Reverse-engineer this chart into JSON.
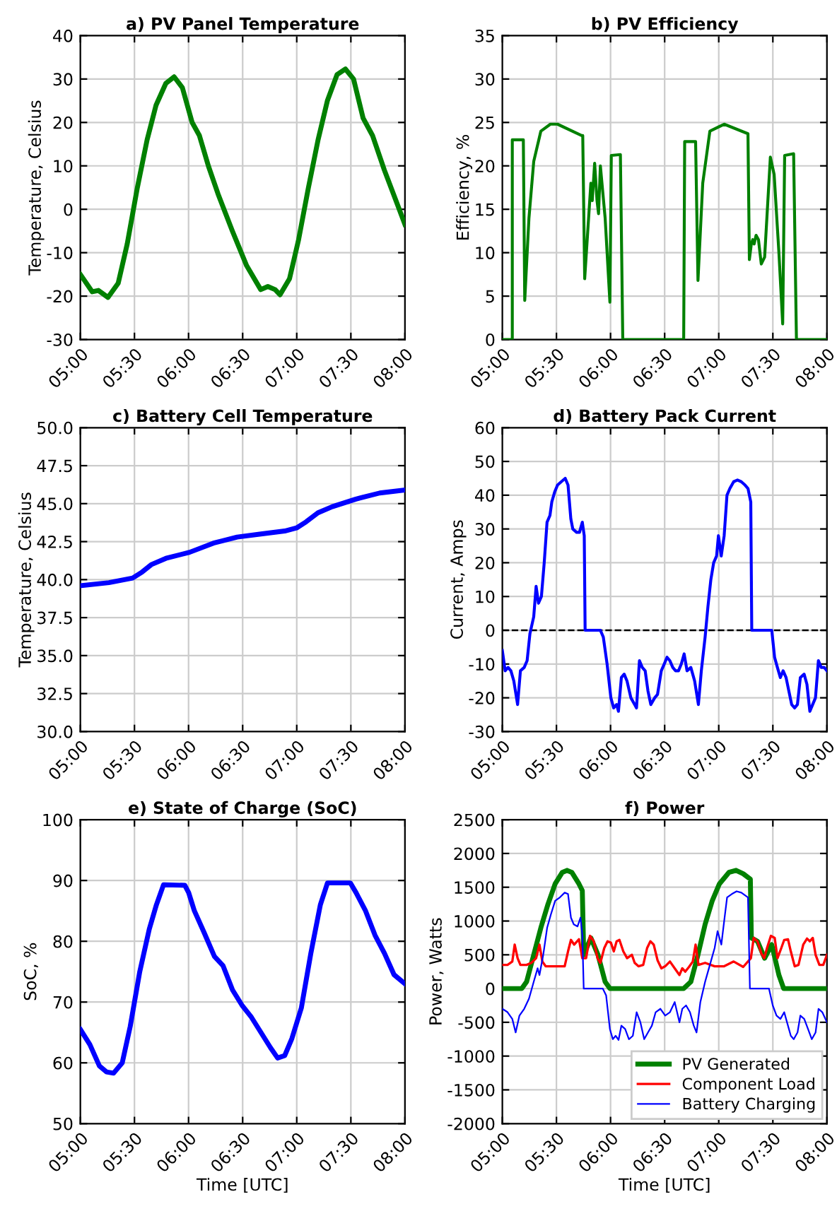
{
  "chart_data": [
    {
      "type": "line",
      "title": "a) PV Panel Temperature",
      "ylabel": "Temperature, Celsius",
      "xlim": [
        5,
        8
      ],
      "ylim": [
        -30,
        40
      ],
      "yticks": [
        -30,
        -20,
        -10,
        0,
        10,
        20,
        30,
        40
      ],
      "xticks": [
        {
          "value": 5,
          "label": "05:00"
        },
        {
          "value": 5.5,
          "label": "05:30"
        },
        {
          "value": 6,
          "label": "06:00"
        },
        {
          "value": 6.5,
          "label": "06:30"
        },
        {
          "value": 7,
          "label": "07:00"
        },
        {
          "value": 7.5,
          "label": "07:30"
        },
        {
          "value": 8,
          "label": "08:00"
        }
      ],
      "grid": true,
      "series": [
        {
          "color": "#008000",
          "x": [
            5.0,
            5.11,
            5.167,
            5.255,
            5.35,
            5.433,
            5.527,
            5.617,
            5.7,
            5.79,
            5.867,
            5.943,
            6.033,
            6.1,
            6.183,
            6.273,
            6.405,
            6.537,
            6.667,
            6.733,
            6.8,
            6.845,
            6.933,
            7.017,
            7.108,
            7.197,
            7.283,
            7.372,
            7.45,
            7.525,
            7.613,
            7.7,
            7.81,
            7.917,
            8.0
          ],
          "values": [
            -15,
            -19,
            -18.7,
            -20.3,
            -17,
            -8,
            5,
            16,
            24,
            29,
            30.5,
            28,
            20,
            17,
            10,
            3.5,
            -5,
            -13,
            -18.5,
            -17.8,
            -18.5,
            -19.7,
            -16,
            -7,
            5,
            16,
            25,
            31,
            32.3,
            30,
            21,
            17,
            9,
            2,
            -3.5
          ]
        }
      ]
    },
    {
      "type": "line",
      "title": "b) PV Efficiency",
      "ylabel": "Efficiency, %",
      "xlim": [
        5,
        8
      ],
      "ylim": [
        0,
        35
      ],
      "yticks": [
        0,
        5,
        10,
        15,
        20,
        25,
        30,
        35
      ],
      "xticks": [
        {
          "value": 5,
          "label": "05:00"
        },
        {
          "value": 5.5,
          "label": "05:30"
        },
        {
          "value": 6,
          "label": "06:00"
        },
        {
          "value": 6.5,
          "label": "06:30"
        },
        {
          "value": 7,
          "label": "07:00"
        },
        {
          "value": 7.5,
          "label": "07:30"
        },
        {
          "value": 8,
          "label": "08:00"
        }
      ],
      "grid": true,
      "series": [
        {
          "color": "#008000",
          "x": [
            5.0,
            5.092,
            5.092,
            5.194,
            5.207,
            5.246,
            5.29,
            5.356,
            5.444,
            5.51,
            5.73,
            5.743,
            5.761,
            5.818,
            5.831,
            5.853,
            5.875,
            5.889,
            5.906,
            5.95,
            5.994,
            6.007,
            6.091,
            6.113,
            6.676,
            6.685,
            6.786,
            6.808,
            6.852,
            6.918,
            7.05,
            7.27,
            7.283,
            7.301,
            7.314,
            7.327,
            7.345,
            7.367,
            7.393,
            7.424,
            7.477,
            7.512,
            7.556,
            7.591,
            7.609,
            7.692,
            7.718,
            8.0
          ],
          "values": [
            0,
            0,
            23,
            23,
            4.5,
            14,
            20.5,
            24,
            24.8,
            24.8,
            23.5,
            23.5,
            7,
            18,
            16,
            20.3,
            16,
            14.5,
            20,
            14,
            4.3,
            21.2,
            21.3,
            0,
            0,
            22.8,
            22.8,
            6.8,
            18,
            24,
            24.8,
            23.7,
            9.2,
            11,
            11.5,
            11,
            12,
            11.5,
            8.7,
            9.5,
            21,
            19,
            10,
            1.8,
            21.2,
            21.4,
            0,
            0
          ]
        }
      ]
    },
    {
      "type": "line",
      "title": "c) Battery Cell Temperature",
      "ylabel": "Temperature, Celsius",
      "xlim": [
        5,
        8
      ],
      "ylim": [
        30,
        50
      ],
      "yticks": [
        {
          "value": 30,
          "label": "30.0"
        },
        {
          "value": 32.5,
          "label": "32.5"
        },
        {
          "value": 35,
          "label": "35.0"
        },
        {
          "value": 37.5,
          "label": "37.5"
        },
        {
          "value": 40,
          "label": "40.0"
        },
        {
          "value": 42.5,
          "label": "42.5"
        },
        {
          "value": 45,
          "label": "45.0"
        },
        {
          "value": 47.5,
          "label": "47.5"
        },
        {
          "value": 50,
          "label": "50.0"
        }
      ],
      "xticks": [
        {
          "value": 5,
          "label": "05:00"
        },
        {
          "value": 5.5,
          "label": "05:30"
        },
        {
          "value": 6,
          "label": "06:00"
        },
        {
          "value": 6.5,
          "label": "06:30"
        },
        {
          "value": 7,
          "label": "07:00"
        },
        {
          "value": 7.5,
          "label": "07:30"
        },
        {
          "value": 8,
          "label": "08:00"
        }
      ],
      "grid": true,
      "series": [
        {
          "color": "#0000ff",
          "x": [
            5.0,
            5.264,
            5.483,
            5.571,
            5.659,
            5.791,
            6.01,
            6.23,
            6.449,
            6.669,
            6.889,
            6.998,
            7.086,
            7.196,
            7.328,
            7.547,
            7.767,
            8.0
          ],
          "values": [
            39.6,
            39.8,
            40.1,
            40.5,
            41.0,
            41.4,
            41.8,
            42.4,
            42.8,
            43.0,
            43.2,
            43.4,
            43.8,
            44.4,
            44.8,
            45.3,
            45.7,
            45.9
          ]
        }
      ]
    },
    {
      "type": "line",
      "title": "d) Battery Pack Current",
      "ylabel": "Current, Amps",
      "xlim": [
        5,
        8
      ],
      "ylim": [
        -30,
        60
      ],
      "yticks": [
        -30,
        -20,
        -10,
        0,
        10,
        20,
        30,
        40,
        50,
        60
      ],
      "xticks": [
        {
          "value": 5,
          "label": "05:00"
        },
        {
          "value": 5.5,
          "label": "05:30"
        },
        {
          "value": 6,
          "label": "06:00"
        },
        {
          "value": 6.5,
          "label": "06:30"
        },
        {
          "value": 7,
          "label": "07:00"
        },
        {
          "value": 7.5,
          "label": "07:30"
        },
        {
          "value": 8,
          "label": "08:00"
        }
      ],
      "grid": true,
      "ref_lines": [
        {
          "axis": "y",
          "value": 0,
          "color": "#000000",
          "line_style": "dashed"
        }
      ],
      "series": [
        {
          "color": "#0000ff",
          "x": [
            5.0,
            5.026,
            5.053,
            5.079,
            5.106,
            5.141,
            5.167,
            5.202,
            5.229,
            5.255,
            5.29,
            5.312,
            5.334,
            5.361,
            5.387,
            5.413,
            5.44,
            5.457,
            5.484,
            5.51,
            5.545,
            5.581,
            5.607,
            5.633,
            5.651,
            5.686,
            5.713,
            5.739,
            5.757,
            5.765,
            5.906,
            5.933,
            5.968,
            6.003,
            6.029,
            6.056,
            6.073,
            6.1,
            6.126,
            6.152,
            6.188,
            6.223,
            6.24,
            6.267,
            6.293,
            6.32,
            6.346,
            6.372,
            6.408,
            6.434,
            6.469,
            6.496,
            6.522,
            6.548,
            6.575,
            6.601,
            6.628,
            6.654,
            6.68,
            6.707,
            6.742,
            6.777,
            6.812,
            6.839,
            6.874,
            6.9,
            6.927,
            6.953,
            6.98,
            6.997,
            7.023,
            7.05,
            7.076,
            7.103,
            7.138,
            7.173,
            7.208,
            7.243,
            7.27,
            7.296,
            7.305,
            7.49,
            7.516,
            7.542,
            7.569,
            7.595,
            7.622,
            7.648,
            7.674,
            7.701,
            7.727,
            7.754,
            7.789,
            7.815,
            7.842,
            7.868,
            7.894,
            7.921,
            7.947,
            7.974,
            8.0
          ],
          "values": [
            -6,
            -12,
            -11,
            -12,
            -15,
            -22,
            -12,
            -11,
            -9,
            -1,
            4,
            13,
            8,
            10,
            20,
            32,
            34,
            38,
            41,
            43,
            44,
            45,
            43,
            33,
            30,
            29,
            29,
            32,
            28,
            0,
            0,
            -2,
            -10,
            -20,
            -23,
            -22,
            -24,
            -14,
            -13,
            -15,
            -20,
            -22,
            -23,
            -9,
            -11,
            -12,
            -18,
            -22,
            -20,
            -19,
            -12,
            -10,
            -8,
            -9,
            -11,
            -12,
            -12,
            -10,
            -7,
            -12,
            -11,
            -15,
            -22,
            -12,
            -2,
            7,
            15,
            20,
            22,
            28,
            22,
            28,
            40,
            42,
            44,
            44.5,
            44,
            43,
            42,
            38,
            0,
            0,
            -8,
            -11,
            -14,
            -12,
            -14,
            -18,
            -22,
            -23,
            -22,
            -14,
            -13,
            -16,
            -24,
            -22,
            -20,
            -9,
            -11,
            -11,
            -12
          ]
        }
      ]
    },
    {
      "type": "line",
      "title": "e) State of Charge (SoC)",
      "xlabel": "Time [UTC]",
      "ylabel": "SoC, %",
      "xlim": [
        5,
        8
      ],
      "ylim": [
        50,
        100
      ],
      "yticks": [
        50,
        60,
        70,
        80,
        90,
        100
      ],
      "xticks": [
        {
          "value": 5,
          "label": "05:00"
        },
        {
          "value": 5.5,
          "label": "05:30"
        },
        {
          "value": 6,
          "label": "06:00"
        },
        {
          "value": 6.5,
          "label": "06:30"
        },
        {
          "value": 7,
          "label": "07:00"
        },
        {
          "value": 7.5,
          "label": "07:30"
        },
        {
          "value": 8,
          "label": "08:00"
        }
      ],
      "grid": true,
      "series": [
        {
          "color": "#0000ff",
          "x": [
            5.0,
            5.088,
            5.176,
            5.242,
            5.307,
            5.387,
            5.461,
            5.549,
            5.637,
            5.703,
            5.769,
            5.966,
            6.001,
            6.054,
            6.142,
            6.239,
            6.318,
            6.406,
            6.493,
            6.581,
            6.669,
            6.757,
            6.823,
            6.889,
            6.955,
            7.042,
            7.13,
            7.218,
            7.284,
            7.495,
            7.548,
            7.636,
            7.723,
            7.811,
            7.899,
            8.0
          ],
          "values": [
            65.5,
            63,
            59.5,
            58.5,
            58.3,
            60,
            66,
            75,
            82,
            86,
            89.3,
            89.2,
            88,
            85,
            81.5,
            77.5,
            76,
            72,
            69.5,
            67.5,
            65,
            62.5,
            60.8,
            61.2,
            64,
            69,
            78,
            86,
            89.6,
            89.6,
            88,
            85,
            81,
            78,
            74.5,
            73
          ]
        }
      ]
    },
    {
      "type": "line",
      "title": "f) Power",
      "xlabel": "Time [UTC]",
      "ylabel": "Power, Watts",
      "xlim": [
        5,
        8
      ],
      "ylim": [
        -2000,
        2500
      ],
      "yticks": [
        -2000,
        -1500,
        -1000,
        -500,
        0,
        500,
        1000,
        1500,
        2000,
        2500
      ],
      "xticks": [
        {
          "value": 5,
          "label": "05:00"
        },
        {
          "value": 5.5,
          "label": "05:30"
        },
        {
          "value": 6,
          "label": "06:00"
        },
        {
          "value": 6.5,
          "label": "06:30"
        },
        {
          "value": 7,
          "label": "07:00"
        },
        {
          "value": 7.5,
          "label": "07:30"
        },
        {
          "value": 8,
          "label": "08:00"
        }
      ],
      "grid": true,
      "legend": "bottom right",
      "series": [
        {
          "name": "PV Generated",
          "color": "#008000",
          "x": [
            5.0,
            5.18,
            5.224,
            5.29,
            5.356,
            5.422,
            5.488,
            5.554,
            5.598,
            5.642,
            5.708,
            5.739,
            5.752,
            5.818,
            5.884,
            5.95,
            5.994,
            6.676,
            6.742,
            6.808,
            6.874,
            6.94,
            7.006,
            7.094,
            7.16,
            7.226,
            7.292,
            7.301,
            7.358,
            7.424,
            7.49,
            7.556,
            7.6,
            8.0
          ],
          "values": [
            0,
            0,
            100,
            500,
            900,
            1250,
            1550,
            1720,
            1750,
            1720,
            1550,
            1450,
            500,
            750,
            500,
            100,
            0,
            0,
            100,
            500,
            950,
            1300,
            1550,
            1720,
            1750,
            1700,
            1620,
            750,
            700,
            450,
            650,
            200,
            0,
            0
          ]
        },
        {
          "name": "Component Load",
          "color": "#ff0000",
          "x": [
            5.0,
            5.048,
            5.092,
            5.114,
            5.141,
            5.167,
            5.224,
            5.268,
            5.312,
            5.343,
            5.37,
            5.4,
            5.51,
            5.576,
            5.607,
            5.634,
            5.664,
            5.708,
            5.739,
            5.774,
            5.81,
            5.845,
            5.88,
            5.906,
            5.942,
            5.972,
            6.003,
            6.03,
            6.056,
            6.082,
            6.118,
            6.153,
            6.197,
            6.223,
            6.258,
            6.302,
            6.338,
            6.368,
            6.399,
            6.434,
            6.47,
            6.505,
            6.549,
            6.593,
            6.637,
            6.663,
            6.69,
            6.725,
            6.76,
            6.786,
            6.813,
            6.874,
            6.962,
            7.05,
            7.138,
            7.226,
            7.297,
            7.323,
            7.358,
            7.394,
            7.42,
            7.446,
            7.482,
            7.517,
            7.543,
            7.578,
            7.605,
            7.64,
            7.666,
            7.702,
            7.737,
            7.781,
            7.816,
            7.842,
            7.869,
            7.895,
            7.93,
            7.966,
            8.0
          ],
          "values": [
            350,
            350,
            400,
            650,
            450,
            350,
            350,
            380,
            450,
            650,
            400,
            330,
            330,
            330,
            550,
            720,
            650,
            730,
            450,
            450,
            780,
            700,
            450,
            380,
            600,
            700,
            680,
            550,
            700,
            720,
            550,
            450,
            500,
            380,
            330,
            350,
            600,
            700,
            650,
            420,
            300,
            330,
            400,
            300,
            200,
            300,
            250,
            320,
            400,
            650,
            350,
            380,
            330,
            330,
            400,
            320,
            450,
            750,
            700,
            520,
            450,
            600,
            780,
            750,
            450,
            600,
            720,
            730,
            550,
            330,
            350,
            650,
            740,
            700,
            750,
            500,
            350,
            350,
            500
          ]
        },
        {
          "name": "Battery Charging",
          "color": "#0000ff",
          "x": [
            5.0,
            5.048,
            5.092,
            5.123,
            5.158,
            5.202,
            5.246,
            5.29,
            5.326,
            5.343,
            5.378,
            5.414,
            5.449,
            5.488,
            5.532,
            5.576,
            5.607,
            5.634,
            5.66,
            5.695,
            5.722,
            5.739,
            5.752,
            5.928,
            5.959,
            5.994,
            6.021,
            6.047,
            6.074,
            6.1,
            6.135,
            6.17,
            6.206,
            6.241,
            6.276,
            6.311,
            6.346,
            6.382,
            6.417,
            6.461,
            6.505,
            6.549,
            6.593,
            6.637,
            6.663,
            6.698,
            6.734,
            6.769,
            6.795,
            6.83,
            6.874,
            6.918,
            6.962,
            6.989,
            7.024,
            7.05,
            7.077,
            7.121,
            7.165,
            7.209,
            7.27,
            7.288,
            7.464,
            7.499,
            7.534,
            7.57,
            7.605,
            7.631,
            7.666,
            7.693,
            7.728,
            7.754,
            7.79,
            7.825,
            7.86,
            7.895,
            7.922,
            7.957,
            8.0
          ],
          "values": [
            -300,
            -350,
            -450,
            -650,
            -400,
            -300,
            -150,
            100,
            300,
            200,
            500,
            900,
            1100,
            1300,
            1350,
            1420,
            1400,
            1050,
            950,
            920,
            1050,
            800,
            0,
            0,
            -100,
            -600,
            -750,
            -700,
            -760,
            -550,
            -600,
            -750,
            -700,
            -350,
            -500,
            -750,
            -650,
            -550,
            -350,
            -300,
            -400,
            -350,
            -200,
            -500,
            -300,
            -250,
            -350,
            -550,
            -650,
            -200,
            100,
            350,
            600,
            850,
            650,
            1000,
            1350,
            1400,
            1440,
            1420,
            1350,
            0,
            0,
            -250,
            -400,
            -450,
            -350,
            -500,
            -700,
            -750,
            -650,
            -400,
            -450,
            -600,
            -750,
            -650,
            -300,
            -350,
            -500
          ]
        }
      ]
    }
  ]
}
